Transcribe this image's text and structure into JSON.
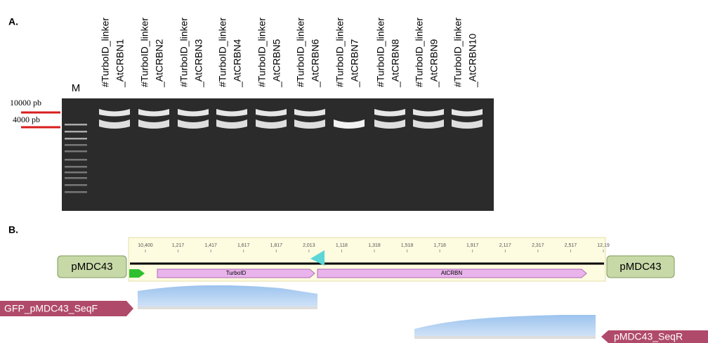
{
  "panel_a": {
    "label": "A.",
    "marker": "M",
    "size_labels": [
      "10000 pb",
      "4000 pb"
    ],
    "lanes": [
      [
        "#TurboID_linker",
        "_AtCRBN1"
      ],
      [
        "#TurboID_linker",
        "_AtCRBN2"
      ],
      [
        "#TurboID_linker",
        "_AtCRBN3"
      ],
      [
        "#TurboID_linker",
        "_AtCRBN4"
      ],
      [
        "#TurboID_linker",
        "_AtCRBN5"
      ],
      [
        "#TurboID_linker",
        "_AtCRBN6"
      ],
      [
        "#TurboID_linker",
        "_AtCRBN7"
      ],
      [
        "#TurboID_linker",
        "_AtCRBN8"
      ],
      [
        "#TurboID_linker",
        "_AtCRBN9"
      ],
      [
        "#TurboID_linker",
        "_AtCRBN10"
      ]
    ]
  },
  "panel_b": {
    "label": "B.",
    "ruler": [
      "10,400",
      "1,217",
      "1,417",
      "1,617",
      "1,817",
      "2,013",
      "1,118",
      "1,318",
      "1,518",
      "1,718",
      "1,917",
      "2,117",
      "2,317",
      "2,517",
      "12,19"
    ],
    "flank_left": "pMDC43",
    "flank_right": "pMDC43",
    "features": [
      "TurboID",
      "AtCRBN"
    ],
    "primer_forward": "GFP_pMDC43_SeqF",
    "primer_reverse": "pMDC43_SeqR"
  }
}
